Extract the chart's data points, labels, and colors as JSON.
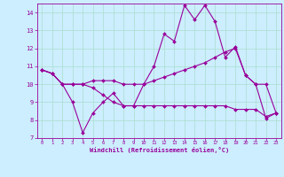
{
  "xlabel": "Windchill (Refroidissement éolien,°C)",
  "x": [
    0,
    1,
    2,
    3,
    4,
    5,
    6,
    7,
    8,
    9,
    10,
    11,
    12,
    13,
    14,
    15,
    16,
    17,
    18,
    19,
    20,
    21,
    22,
    23
  ],
  "line1": [
    10.8,
    10.6,
    10.0,
    9.0,
    7.3,
    8.4,
    9.0,
    9.5,
    8.8,
    8.8,
    10.0,
    11.0,
    12.8,
    12.4,
    14.4,
    13.6,
    14.4,
    13.5,
    11.5,
    12.1,
    10.5,
    10.0,
    8.1,
    8.4
  ],
  "line2": [
    10.8,
    10.6,
    10.0,
    10.0,
    10.0,
    10.2,
    10.2,
    10.2,
    10.0,
    10.0,
    10.0,
    10.2,
    10.4,
    10.6,
    10.8,
    11.0,
    11.2,
    11.5,
    11.8,
    12.0,
    10.5,
    10.0,
    10.0,
    8.4
  ],
  "line3": [
    10.8,
    10.6,
    10.0,
    10.0,
    10.0,
    9.8,
    9.4,
    9.0,
    8.8,
    8.8,
    8.8,
    8.8,
    8.8,
    8.8,
    8.8,
    8.8,
    8.8,
    8.8,
    8.8,
    8.6,
    8.6,
    8.6,
    8.2,
    8.4
  ],
  "line_color": "#990099",
  "bg_color": "#cceeff",
  "grid_color": "#aaddcc",
  "ylim": [
    7,
    14.5
  ],
  "yticks": [
    7,
    8,
    9,
    10,
    11,
    12,
    13,
    14
  ],
  "xlim": [
    -0.5,
    23.5
  ],
  "xticks": [
    0,
    1,
    2,
    3,
    4,
    5,
    6,
    7,
    8,
    9,
    10,
    11,
    12,
    13,
    14,
    15,
    16,
    17,
    18,
    19,
    20,
    21,
    22,
    23
  ]
}
